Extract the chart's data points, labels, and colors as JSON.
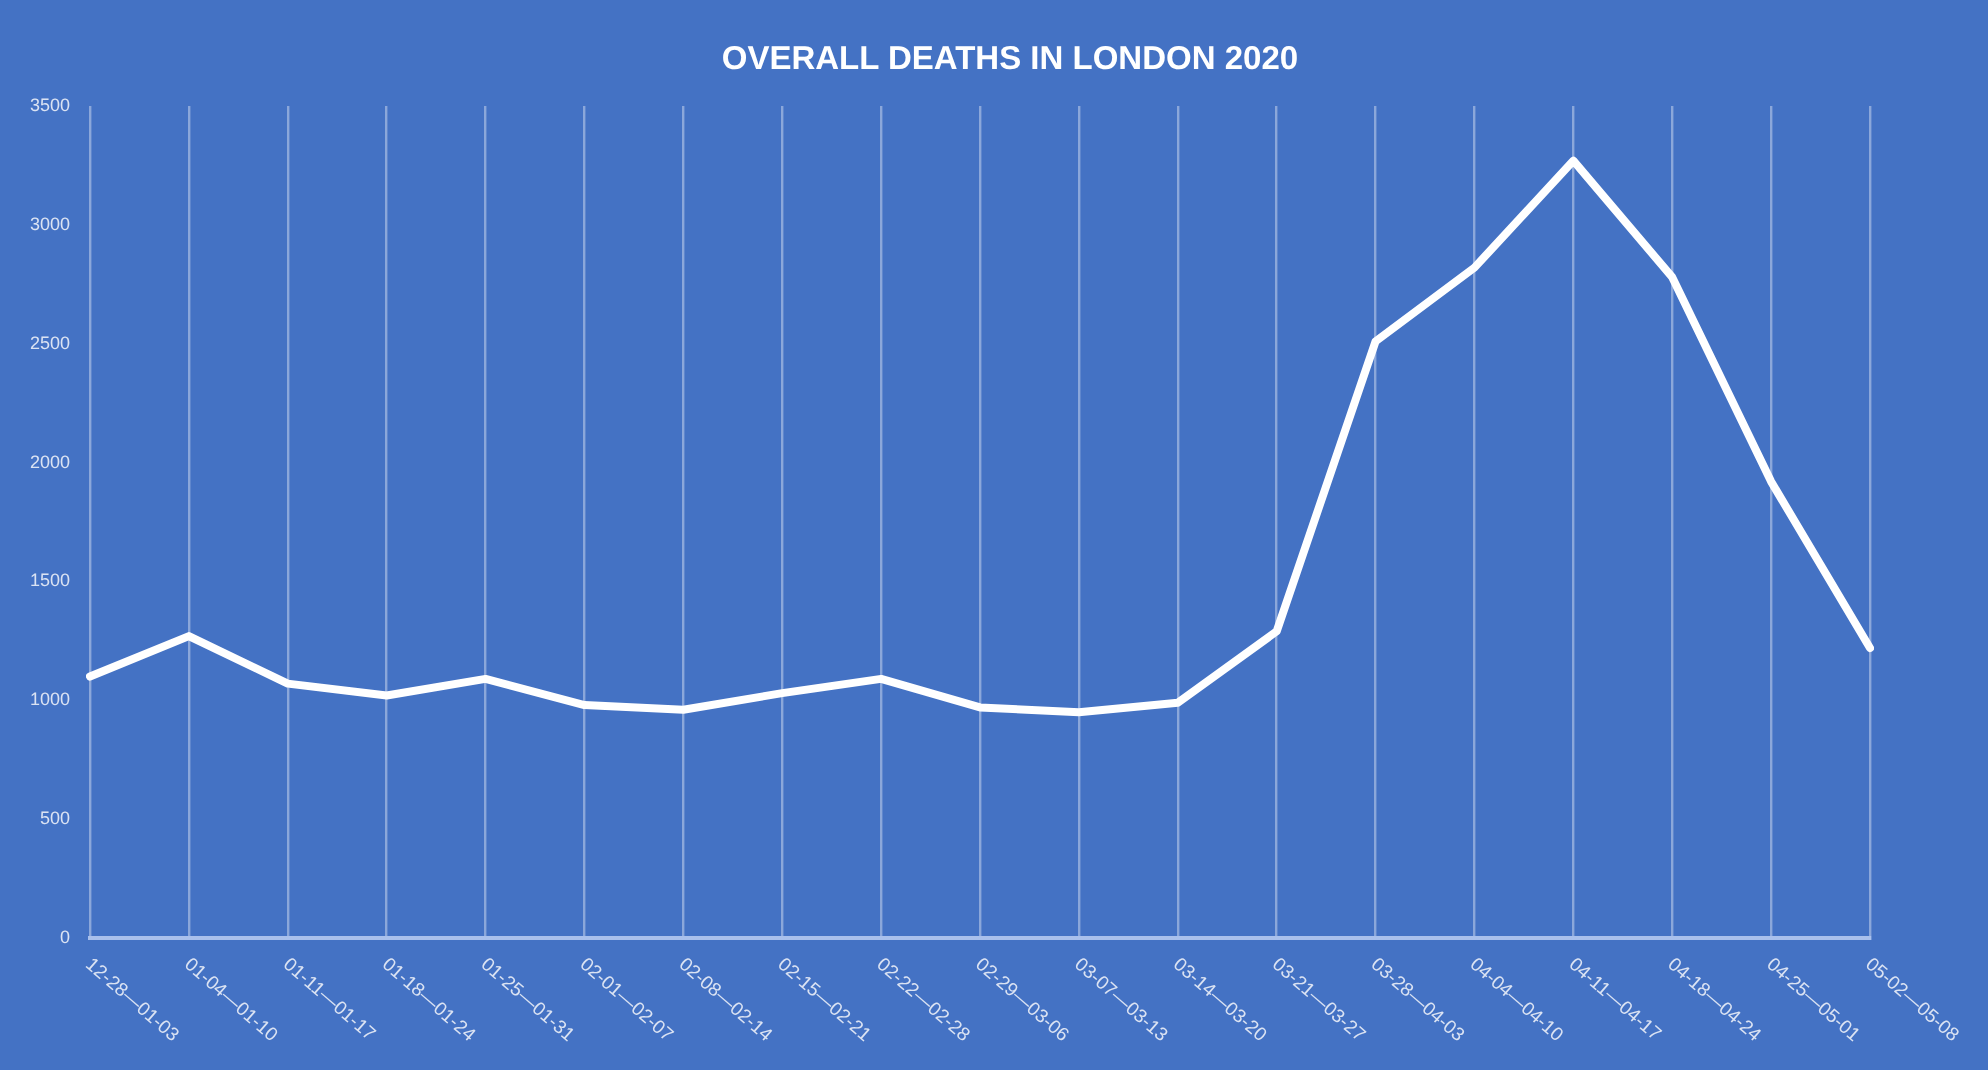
{
  "chart_data": {
    "type": "line",
    "title": "OVERALL DEATHS IN LONDON 2020",
    "categories": [
      "12-28—01-03",
      "01-04—01-10",
      "01-11—01-17",
      "01-18—01-24",
      "01-25—01-31",
      "02-01—02-07",
      "02-08—02-14",
      "02-15—02-21",
      "02-22—02-28",
      "02-29—03-06",
      "03-07—03-13",
      "03-14—03-20",
      "03-21—03-27",
      "03-28—04-03",
      "04-04—04-10",
      "04-11—04-17",
      "04-18—04-24",
      "04-25—05-01",
      "05-02—05-08"
    ],
    "series": [
      {
        "color": "#ffffff",
        "values": [
          1100,
          1270,
          1070,
          1020,
          1090,
          980,
          960,
          1030,
          1090,
          970,
          950,
          990,
          1290,
          2510,
          2820,
          3270,
          2780,
          1920,
          1220
        ]
      }
    ],
    "ylim": [
      0,
      3500
    ],
    "yticks": [
      0,
      500,
      1000,
      1500,
      2000,
      2500,
      3000,
      3500
    ],
    "grid": "x",
    "legend": false,
    "marker": "none",
    "line_style": "solid"
  }
}
